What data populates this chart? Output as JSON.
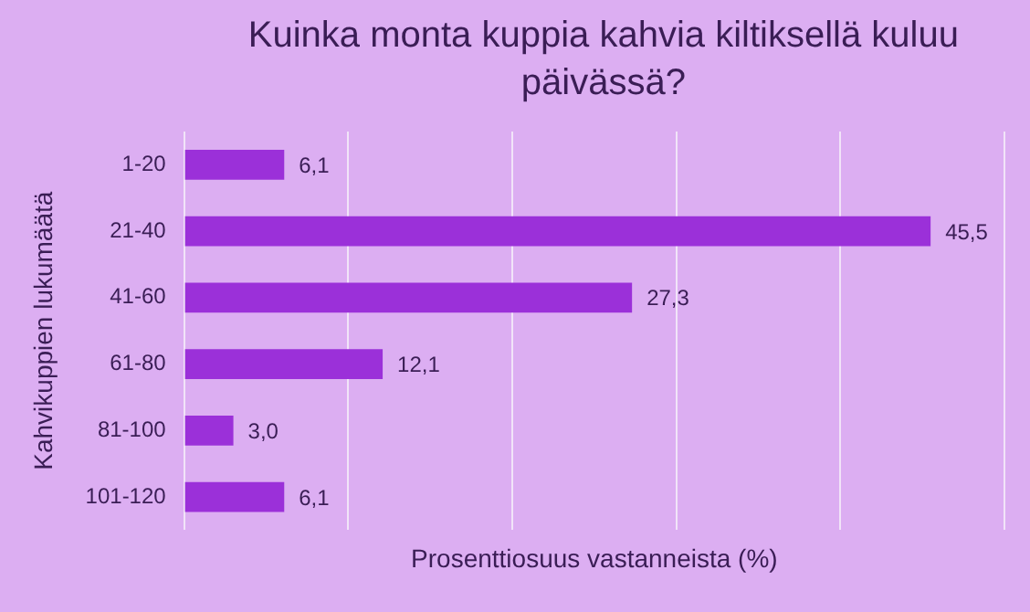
{
  "chart_data": {
    "type": "bar",
    "orientation": "horizontal",
    "title": "Kuinka monta kuppia kahvia kiltiksellä kuluu päivässä?",
    "xlabel": "Prosenttiosuus vastanneista (%)",
    "ylabel": "Kahvikuppien lukumäätä",
    "categories": [
      "1-20",
      "21-40",
      "41-60",
      "61-80",
      "81-100",
      "101-120"
    ],
    "values": [
      6.1,
      45.5,
      27.3,
      12.1,
      3.0,
      6.1
    ],
    "color": "#9b30d9",
    "value_labels": [
      "6,1",
      "45,5",
      "27,3",
      "12,1",
      "3,0",
      "6,1"
    ],
    "xlim": [
      0,
      50
    ],
    "xticks": [
      {
        "value": 0,
        "label": null
      },
      {
        "value": 10,
        "label": null
      },
      {
        "value": 20,
        "label": null
      },
      {
        "value": 30,
        "label": null
      },
      {
        "value": 40,
        "label": null
      },
      {
        "value": 50,
        "label": null
      }
    ],
    "tick_labels": "y",
    "grid": "x",
    "legend": false
  }
}
